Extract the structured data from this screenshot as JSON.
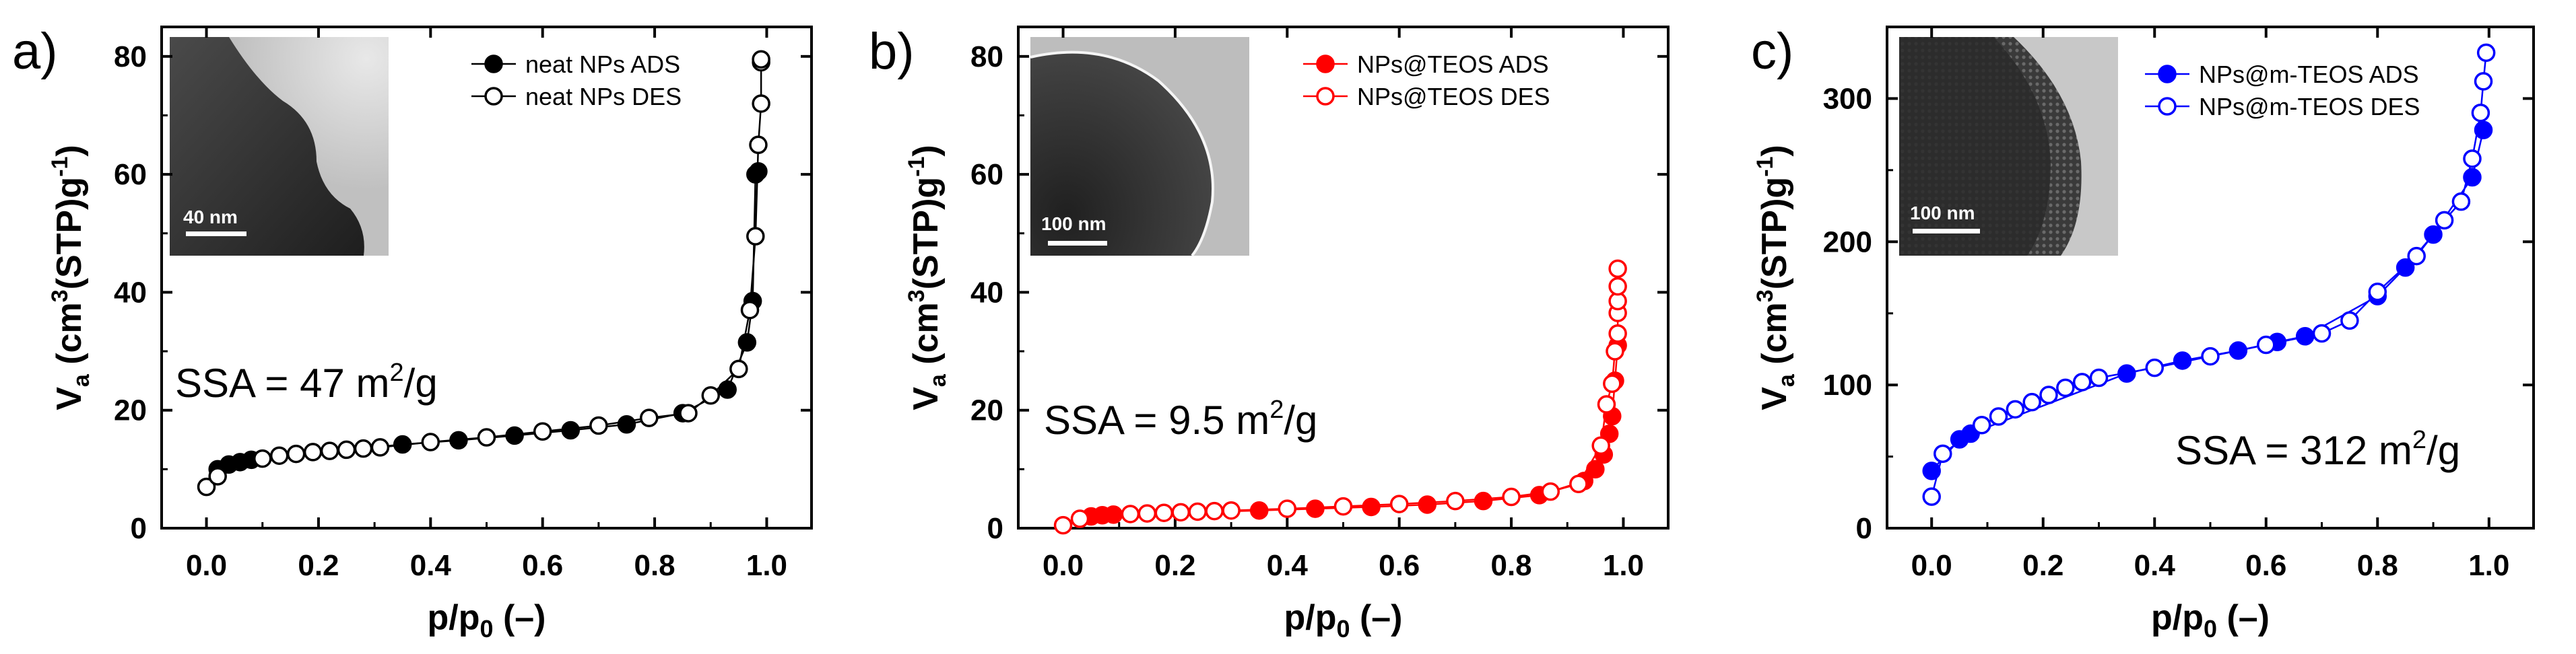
{
  "chart_data": [
    {
      "type": "line",
      "panel_label": "a)",
      "color": "#000000",
      "xlabel": "p/p0 (–)",
      "ylabel": "Va (cm3(STP)g-1)",
      "xlim": [
        -0.08,
        1.08
      ],
      "ylim": [
        0,
        85
      ],
      "xticks": [
        0.0,
        0.2,
        0.4,
        0.6,
        0.8,
        1.0
      ],
      "xtick_labels": [
        "0.0",
        "0.2",
        "0.4",
        "0.6",
        "0.8",
        "1.0"
      ],
      "yticks": [
        0,
        20,
        40,
        60,
        80
      ],
      "ytick_labels": [
        "0",
        "20",
        "40",
        "60",
        "80"
      ],
      "annotation": {
        "prefix": "SSA = 47 m",
        "sup": "2",
        "suffix": "/g"
      },
      "inset_scale_label": "40 nm",
      "legend_position": "top-right",
      "series": [
        {
          "name": "neat NPs ADS",
          "marker": "filled",
          "x": [
            0.02,
            0.04,
            0.06,
            0.08,
            0.35,
            0.45,
            0.55,
            0.65,
            0.75,
            0.85,
            0.93,
            0.965,
            0.975,
            0.98,
            0.985
          ],
          "y": [
            10.0,
            10.8,
            11.2,
            11.6,
            14.2,
            14.9,
            15.7,
            16.6,
            17.6,
            19.5,
            23.5,
            31.5,
            38.5,
            60.0,
            60.5
          ]
        },
        {
          "name": "neat NPs DES",
          "marker": "open",
          "x": [
            0.0,
            0.02,
            0.1,
            0.13,
            0.16,
            0.19,
            0.22,
            0.25,
            0.28,
            0.31,
            0.4,
            0.5,
            0.6,
            0.7,
            0.79,
            0.86,
            0.9,
            0.95,
            0.97,
            0.98,
            0.985,
            0.99,
            0.99,
            0.99
          ],
          "y": [
            7.0,
            8.8,
            11.8,
            12.3,
            12.6,
            12.9,
            13.1,
            13.3,
            13.5,
            13.7,
            14.6,
            15.4,
            16.4,
            17.4,
            18.7,
            19.5,
            22.5,
            27.0,
            37.0,
            49.5,
            65.0,
            72.0,
            79.0,
            79.5
          ]
        }
      ]
    },
    {
      "type": "line",
      "panel_label": "b)",
      "color": "#ff0000",
      "xlabel": "p/p0 (–)",
      "ylabel": "Va (cm3(STP)g-1)",
      "xlim": [
        -0.08,
        1.08
      ],
      "ylim": [
        0,
        85
      ],
      "xticks": [
        0.0,
        0.2,
        0.4,
        0.6,
        0.8,
        1.0
      ],
      "xtick_labels": [
        "0.0",
        "0.2",
        "0.4",
        "0.6",
        "0.8",
        "1.0"
      ],
      "yticks": [
        0,
        20,
        40,
        60,
        80
      ],
      "ytick_labels": [
        "0",
        "20",
        "40",
        "60",
        "80"
      ],
      "annotation": {
        "prefix": "SSA = 9.5 m",
        "sup": "2",
        "suffix": "/g"
      },
      "inset_scale_label": "100 nm",
      "legend_position": "top-right",
      "series": [
        {
          "name": "NPs@TEOS ADS",
          "marker": "filled",
          "x": [
            0.05,
            0.07,
            0.09,
            0.35,
            0.45,
            0.55,
            0.65,
            0.75,
            0.85,
            0.93,
            0.95,
            0.965,
            0.975,
            0.98,
            0.985,
            0.99
          ],
          "y": [
            2.0,
            2.2,
            2.3,
            3.0,
            3.3,
            3.6,
            4.0,
            4.6,
            5.6,
            8.0,
            10.0,
            12.5,
            16.0,
            19.0,
            25.0,
            31.0
          ]
        },
        {
          "name": "NPs@TEOS DES",
          "marker": "open",
          "x": [
            0.0,
            0.03,
            0.12,
            0.15,
            0.18,
            0.21,
            0.24,
            0.27,
            0.3,
            0.4,
            0.5,
            0.6,
            0.7,
            0.8,
            0.87,
            0.92,
            0.96,
            0.97,
            0.98,
            0.985,
            0.99,
            0.99,
            0.99,
            0.99,
            0.99
          ],
          "y": [
            0.5,
            1.6,
            2.4,
            2.5,
            2.6,
            2.7,
            2.8,
            2.9,
            3.0,
            3.3,
            3.7,
            4.1,
            4.6,
            5.3,
            6.2,
            7.5,
            14.0,
            21.0,
            24.5,
            30.0,
            33.0,
            36.5,
            38.5,
            41.0,
            44.0
          ]
        }
      ]
    },
    {
      "type": "line",
      "panel_label": "c)",
      "color": "#0000ff",
      "xlabel": "p/p0 (–)",
      "ylabel": "Va (cm3(STP)g-1)",
      "xlim": [
        -0.08,
        1.08
      ],
      "ylim": [
        0,
        350
      ],
      "xticks": [
        0.0,
        0.2,
        0.4,
        0.6,
        0.8,
        1.0
      ],
      "xtick_labels": [
        "0.0",
        "0.2",
        "0.4",
        "0.6",
        "0.8",
        "1.0"
      ],
      "yticks": [
        0,
        100,
        200,
        300
      ],
      "ytick_labels": [
        "0",
        "100",
        "200",
        "300"
      ],
      "annotation": {
        "prefix": "SSA = 312 m",
        "sup": "2",
        "suffix": "/g"
      },
      "inset_scale_label": "100 nm",
      "legend_position": "top-right",
      "series": [
        {
          "name": "NPs@m-TEOS ADS",
          "marker": "filled",
          "x": [
            0.0,
            0.05,
            0.07,
            0.35,
            0.45,
            0.55,
            0.62,
            0.67,
            0.8,
            0.85,
            0.9,
            0.97,
            0.99
          ],
          "y": [
            40,
            62,
            66,
            108,
            117,
            124,
            130,
            134,
            162,
            182,
            205,
            245,
            278
          ]
        },
        {
          "name": "NPs@m-TEOS DES",
          "marker": "open",
          "x": [
            0.0,
            0.02,
            0.09,
            0.12,
            0.15,
            0.18,
            0.21,
            0.24,
            0.27,
            0.3,
            0.4,
            0.5,
            0.6,
            0.7,
            0.75,
            0.8,
            0.87,
            0.92,
            0.95,
            0.97,
            0.985,
            0.99,
            0.995
          ],
          "y": [
            22,
            52,
            72,
            78,
            83,
            88,
            93,
            98,
            102,
            105,
            112,
            120,
            128,
            136,
            145,
            165,
            190,
            215,
            228,
            258,
            290,
            312,
            332
          ]
        }
      ]
    }
  ]
}
